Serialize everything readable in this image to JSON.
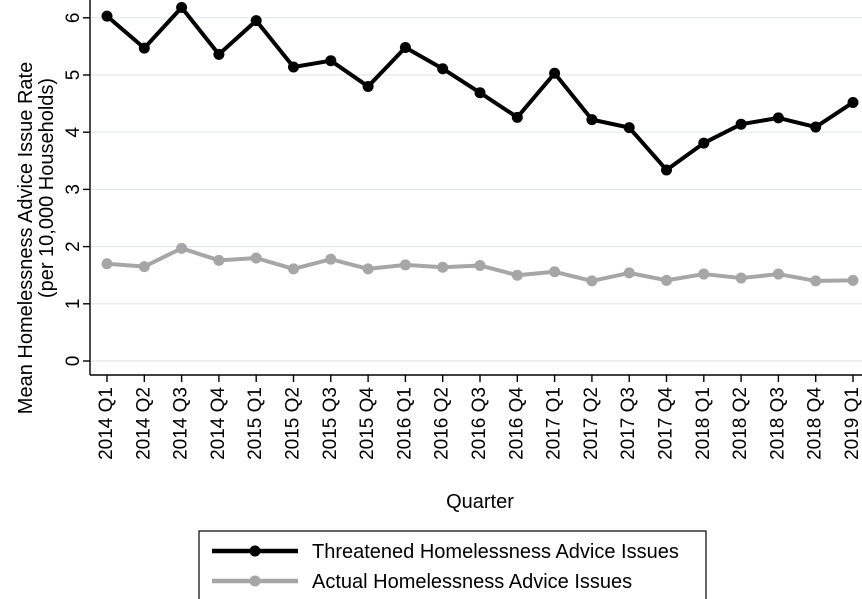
{
  "chart_data": {
    "type": "line",
    "title": "",
    "xlabel": "Quarter",
    "ylabel_line1": "Mean Homelessness Advice Issue Rate",
    "ylabel_line2": "(per 10,000 Households)",
    "ylim": [
      0,
      6.2
    ],
    "yticks": [
      0,
      1,
      2,
      3,
      4,
      5,
      6
    ],
    "grid": true,
    "legend_position": "bottom",
    "categories": [
      "2014 Q1",
      "2014 Q2",
      "2014 Q3",
      "2014 Q4",
      "2015 Q1",
      "2015 Q2",
      "2015 Q3",
      "2015 Q4",
      "2016 Q1",
      "2016 Q2",
      "2016 Q3",
      "2016 Q4",
      "2017 Q1",
      "2017 Q2",
      "2017 Q3",
      "2017 Q4",
      "2018 Q1",
      "2018 Q2",
      "2018 Q3",
      "2018 Q4",
      "2019 Q1"
    ],
    "series": [
      {
        "name": "Threatened Homelessness Advice Issues",
        "color": "#000000",
        "values": [
          6.03,
          5.47,
          6.18,
          5.36,
          5.95,
          5.14,
          5.25,
          4.8,
          5.48,
          5.11,
          4.69,
          4.26,
          5.03,
          4.22,
          4.08,
          3.34,
          3.81,
          4.14,
          4.25,
          4.09,
          4.52
        ]
      },
      {
        "name": "Actual Homelessness Advice Issues",
        "color": "#a6a6a6",
        "values": [
          1.7,
          1.65,
          1.97,
          1.76,
          1.8,
          1.61,
          1.78,
          1.61,
          1.68,
          1.64,
          1.67,
          1.5,
          1.56,
          1.4,
          1.54,
          1.41,
          1.52,
          1.45,
          1.52,
          1.4,
          1.41
        ]
      }
    ]
  }
}
